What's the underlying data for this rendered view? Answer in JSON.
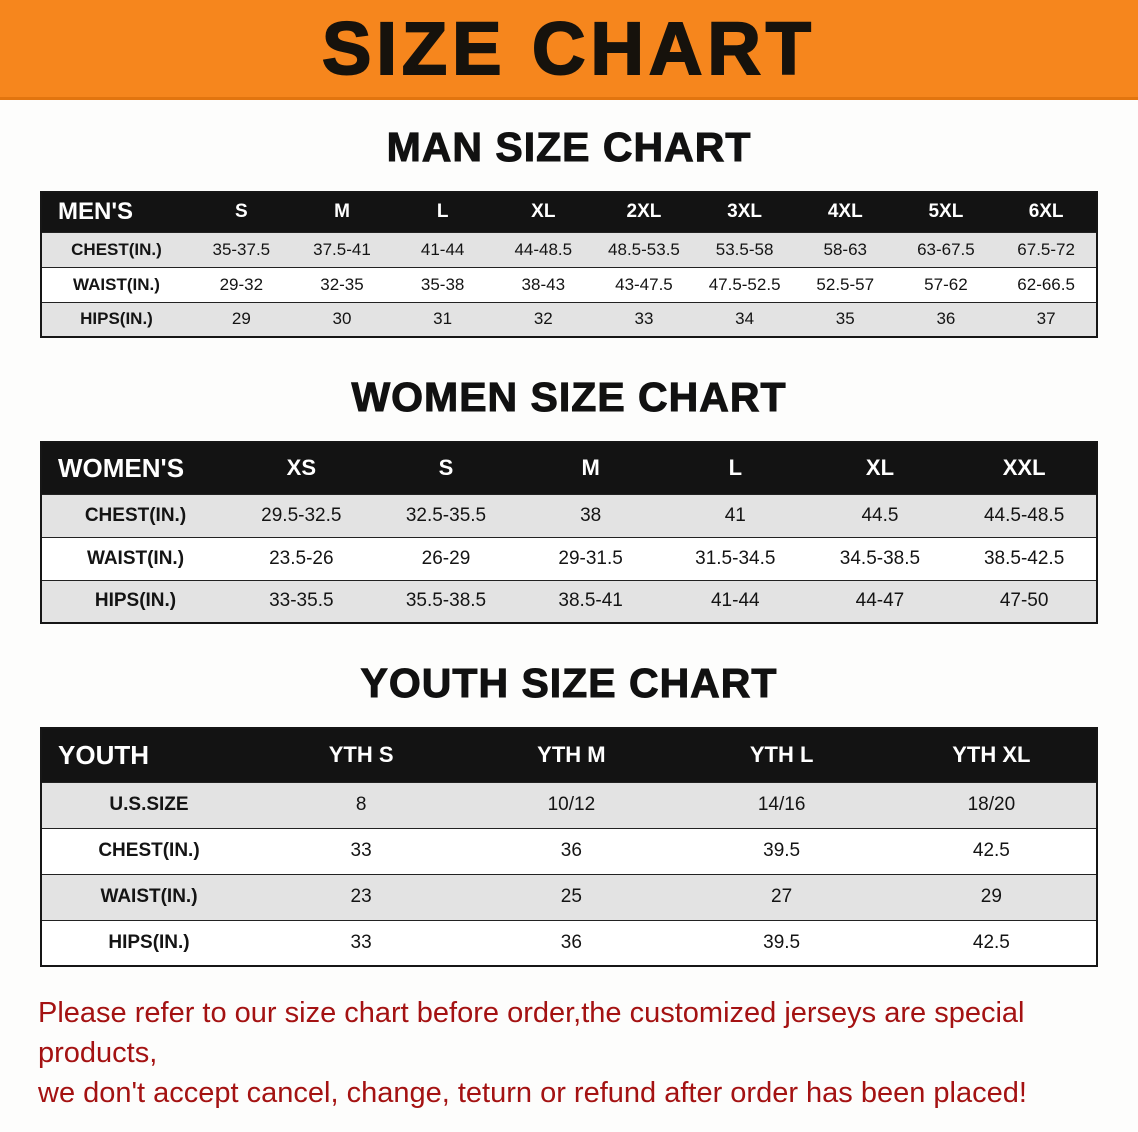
{
  "banner": {
    "title": "SIZE CHART"
  },
  "colors": {
    "banner_bg": "#f6861d",
    "table_header_bg": "#131313",
    "row_alt_bg": "#e3e3e3",
    "disclaimer_text": "#a41212"
  },
  "footer": {
    "line1": "Please refer to our size chart before order,the customized jerseys are special products,",
    "line2": "we don't accept cancel, change, teturn or refund after order has been placed!"
  },
  "chart_data": [
    {
      "type": "table",
      "id": "men",
      "title": "MAN SIZE CHART",
      "header": [
        "MEN'S",
        "S",
        "M",
        "L",
        "XL",
        "2XL",
        "3XL",
        "4XL",
        "5XL",
        "6XL"
      ],
      "rows": [
        [
          "CHEST(IN.)",
          "35-37.5",
          "37.5-41",
          "41-44",
          "44-48.5",
          "48.5-53.5",
          "53.5-58",
          "58-63",
          "63-67.5",
          "67.5-72"
        ],
        [
          "WAIST(IN.)",
          "29-32",
          "32-35",
          "35-38",
          "38-43",
          "43-47.5",
          "47.5-52.5",
          "52.5-57",
          "57-62",
          "62-66.5"
        ],
        [
          "HIPS(IN.)",
          "29",
          "30",
          "31",
          "32",
          "33",
          "34",
          "35",
          "36",
          "37"
        ]
      ]
    },
    {
      "type": "table",
      "id": "women",
      "title": "WOMEN SIZE CHART",
      "header": [
        "WOMEN'S",
        "XS",
        "S",
        "M",
        "L",
        "XL",
        "XXL"
      ],
      "rows": [
        [
          "CHEST(IN.)",
          "29.5-32.5",
          "32.5-35.5",
          "38",
          "41",
          "44.5",
          "44.5-48.5"
        ],
        [
          "WAIST(IN.)",
          "23.5-26",
          "26-29",
          "29-31.5",
          "31.5-34.5",
          "34.5-38.5",
          "38.5-42.5"
        ],
        [
          "HIPS(IN.)",
          "33-35.5",
          "35.5-38.5",
          "38.5-41",
          "41-44",
          "44-47",
          "47-50"
        ]
      ]
    },
    {
      "type": "table",
      "id": "youth",
      "title": "YOUTH SIZE CHART",
      "header": [
        "YOUTH",
        "YTH S",
        "YTH M",
        "YTH L",
        "YTH XL"
      ],
      "rows": [
        [
          "U.S.SIZE",
          "8",
          "10/12",
          "14/16",
          "18/20"
        ],
        [
          "CHEST(IN.)",
          "33",
          "36",
          "39.5",
          "42.5"
        ],
        [
          "WAIST(IN.)",
          "23",
          "25",
          "27",
          "29"
        ],
        [
          "HIPS(IN.)",
          "33",
          "36",
          "39.5",
          "42.5"
        ]
      ]
    }
  ]
}
